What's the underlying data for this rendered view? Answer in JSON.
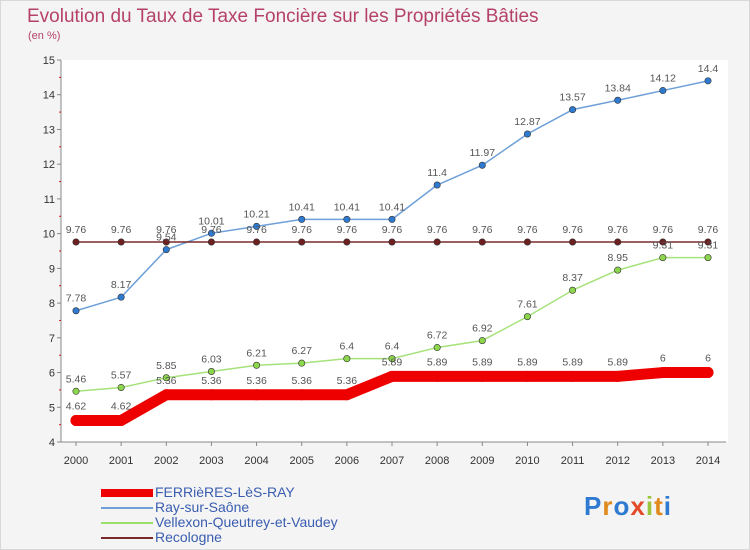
{
  "header": {
    "title": "Evolution du Taux de Taxe Foncière sur les Propriétés Bâties",
    "subtitle": "(en %)"
  },
  "logo": {
    "text": "Proxiti"
  },
  "chart_data": {
    "type": "line",
    "title": "Evolution du Taux de Taxe Foncière sur les Propriétés Bâties",
    "ylabel": "(en %)",
    "xlabel": "",
    "x": [
      "2000",
      "2001",
      "2002",
      "2003",
      "2004",
      "2005",
      "2006",
      "2007",
      "2008",
      "2009",
      "2010",
      "2011",
      "2012",
      "2013",
      "2014"
    ],
    "ylim": [
      4,
      15
    ],
    "yticks": [
      "4",
      "5",
      "6",
      "7",
      "8",
      "9",
      "10",
      "11",
      "12",
      "13",
      "14",
      "15"
    ],
    "grid": false,
    "legend_position": "bottom-left",
    "series": [
      {
        "name": "FERRièRES-LèS-RAY",
        "color": "#ee0000",
        "values": [
          4.62,
          4.62,
          5.36,
          5.36,
          5.36,
          5.36,
          5.36,
          5.89,
          5.89,
          5.89,
          5.89,
          5.89,
          5.89,
          6,
          6
        ],
        "labels": [
          "4.62",
          "4.62",
          "5.36",
          "5.36",
          "5.36",
          "5.36",
          "5.36",
          "5.89",
          "5.89",
          "5.89",
          "5.89",
          "5.89",
          "5.89",
          "6",
          "6"
        ]
      },
      {
        "name": "Ray-sur-Saône",
        "color": "#6fa0d8",
        "values": [
          7.78,
          8.17,
          9.54,
          10.01,
          10.21,
          10.41,
          10.41,
          10.41,
          11.4,
          11.97,
          12.87,
          13.57,
          13.84,
          14.12,
          14.4
        ],
        "labels": [
          "7.78",
          "8.17",
          "9.54",
          "10.01",
          "10.21",
          "10.41",
          "10.41",
          "10.41",
          "11.4",
          "11.97",
          "12.87",
          "13.57",
          "13.84",
          "14.12",
          "14.4"
        ]
      },
      {
        "name": "Vellexon-Queutrey-et-Vaudey",
        "color": "#9be06a",
        "values": [
          5.46,
          5.57,
          5.85,
          6.03,
          6.21,
          6.27,
          6.4,
          6.4,
          6.72,
          6.92,
          7.61,
          8.37,
          8.95,
          9.31,
          9.31
        ],
        "labels": [
          "5.46",
          "5.57",
          "5.85",
          "6.03",
          "6.21",
          "6.27",
          "6.4",
          "6.4",
          "6.72",
          "6.92",
          "7.61",
          "8.37",
          "8.95",
          "9.31",
          "9.31"
        ]
      },
      {
        "name": "Recologne",
        "color": "#7a2a2a",
        "values": [
          9.76,
          9.76,
          9.76,
          9.76,
          9.76,
          9.76,
          9.76,
          9.76,
          9.76,
          9.76,
          9.76,
          9.76,
          9.76,
          9.76,
          9.76
        ],
        "labels": [
          "9.76",
          "9.76",
          "9.76",
          "9.76",
          "9.76",
          "9.76",
          "9.76",
          "9.76",
          "9.76",
          "9.76",
          "9.76",
          "9.76",
          "9.76",
          "9.76",
          "9.76"
        ]
      }
    ]
  }
}
